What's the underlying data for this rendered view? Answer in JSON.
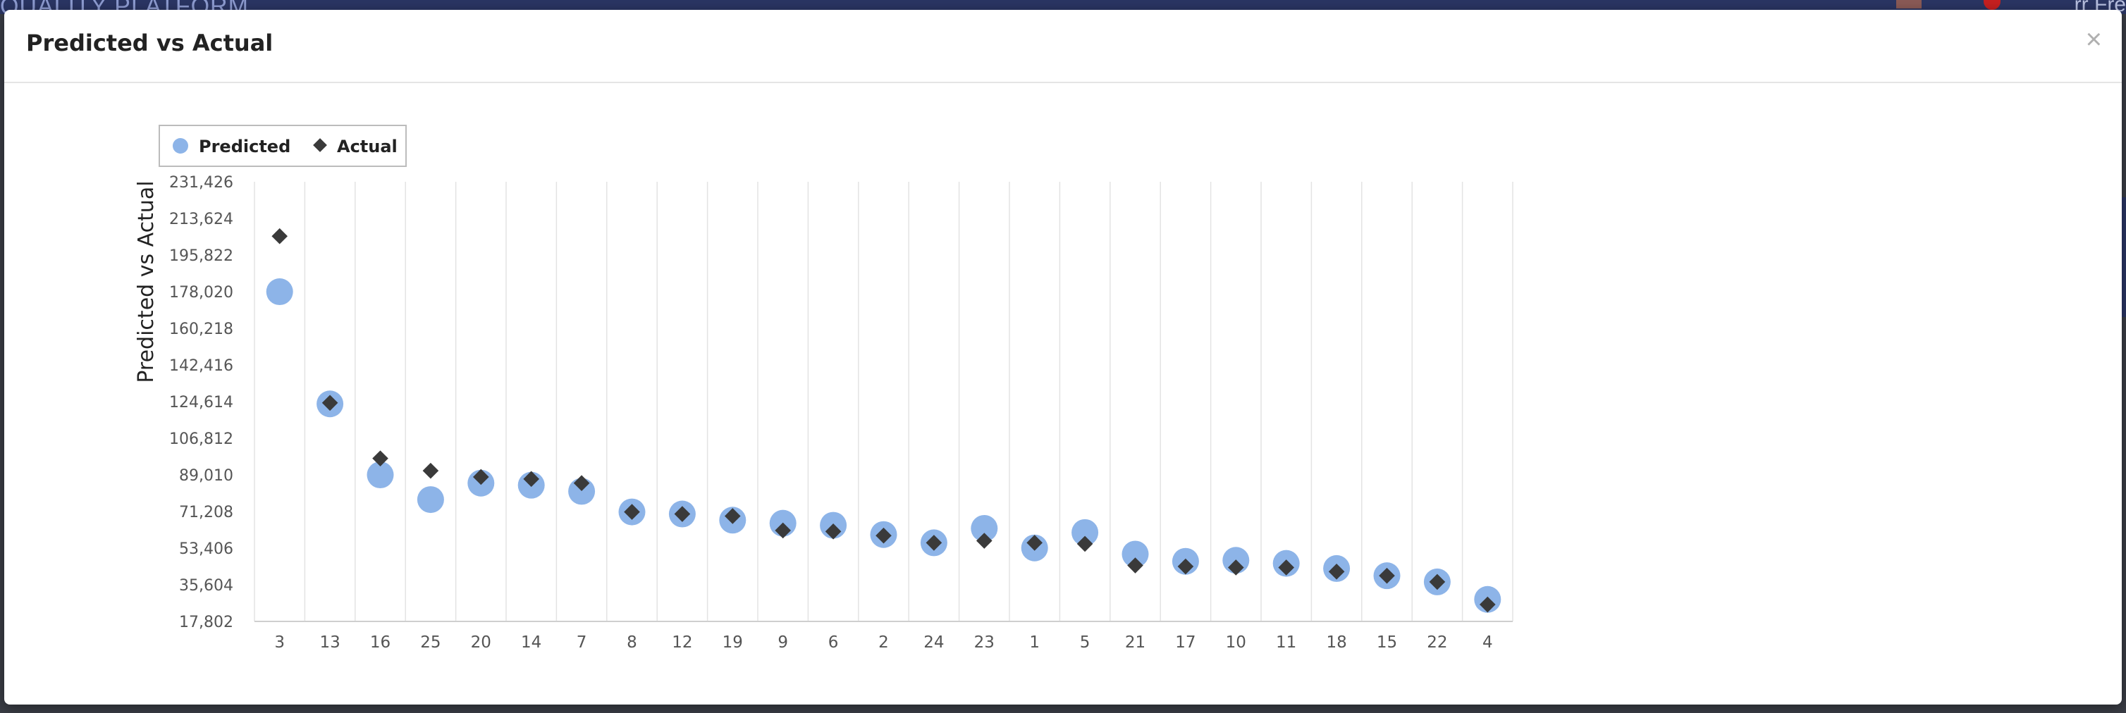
{
  "backdrop": {
    "brand": "QUALITY PLATFORM",
    "user": "rr Fre"
  },
  "modal": {
    "title": "Predicted vs Actual",
    "close_label": "×"
  },
  "chart_data": {
    "type": "scatter",
    "ylabel": "Predicted vs Actual",
    "ylim": [
      17802,
      231426
    ],
    "yticks": [
      "17,802",
      "35,604",
      "53,406",
      "71,208",
      "89,010",
      "106,812",
      "124,614",
      "142,416",
      "160,218",
      "178,020",
      "195,822",
      "213,624",
      "231,426"
    ],
    "categories": [
      "3",
      "13",
      "16",
      "25",
      "20",
      "14",
      "7",
      "8",
      "12",
      "19",
      "9",
      "6",
      "2",
      "24",
      "23",
      "1",
      "5",
      "21",
      "17",
      "10",
      "11",
      "18",
      "15",
      "22",
      "4"
    ],
    "legend_position": "top-left",
    "grid": true,
    "series": [
      {
        "name": "Predicted",
        "marker": "circle",
        "color": "#8db4e8",
        "values": [
          178000,
          123500,
          89000,
          77000,
          85000,
          84000,
          81000,
          71000,
          70000,
          67000,
          65500,
          64500,
          60000,
          56000,
          63000,
          53500,
          61000,
          50500,
          47000,
          47500,
          46000,
          43500,
          40000,
          37000,
          28500
        ]
      },
      {
        "name": "Actual",
        "marker": "diamond",
        "color": "#3a3a3a",
        "values": [
          205000,
          124000,
          97000,
          91000,
          88000,
          87000,
          85000,
          71000,
          70000,
          69000,
          62000,
          61500,
          59500,
          56000,
          57000,
          56000,
          55500,
          45000,
          44500,
          44000,
          44000,
          42000,
          40000,
          37000,
          26000
        ]
      }
    ]
  }
}
